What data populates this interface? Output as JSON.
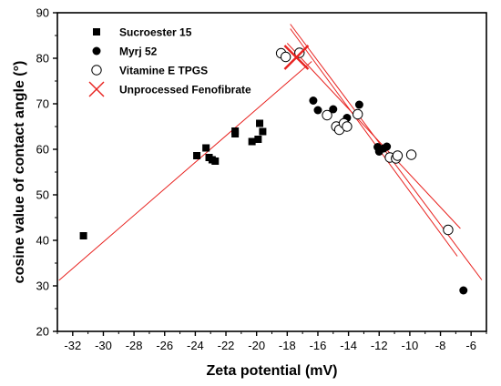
{
  "chart_data": {
    "type": "scatter",
    "xlabel": "Zeta potential (mV)",
    "ylabel": "cosine value of contact angle (°)",
    "xlim": [
      -33,
      -5
    ],
    "ylim": [
      20,
      90
    ],
    "x_ticks": [
      -32,
      -30,
      -28,
      -26,
      -24,
      -22,
      -20,
      -18,
      -16,
      -14,
      -12,
      -10,
      -8,
      -6
    ],
    "y_ticks": [
      20,
      30,
      40,
      50,
      60,
      70,
      80,
      90
    ],
    "x_tick_labels": [
      "-32",
      "-30",
      "-28",
      "-26",
      "-24",
      "-22",
      "-20",
      "-18",
      "-16",
      "-14",
      "-12",
      "-10",
      "-8",
      "-6"
    ],
    "y_tick_labels": [
      "20",
      "30",
      "40",
      "50",
      "60",
      "70",
      "80",
      "90"
    ],
    "legend_position": "top-left",
    "grid": false,
    "series": [
      {
        "name": "Sucroester 15",
        "marker": "square-filled",
        "color": "#000000",
        "points": [
          [
            -31.3,
            41.0
          ],
          [
            -23.9,
            58.6
          ],
          [
            -23.3,
            60.3
          ],
          [
            -23.1,
            58.2
          ],
          [
            -22.9,
            57.7
          ],
          [
            -22.7,
            57.4
          ],
          [
            -21.4,
            63.4
          ],
          [
            -21.4,
            64.0
          ],
          [
            -20.3,
            61.7
          ],
          [
            -19.9,
            62.2
          ],
          [
            -19.8,
            65.7
          ],
          [
            -19.6,
            63.9
          ]
        ]
      },
      {
        "name": "Myrj 52",
        "marker": "circle-filled",
        "color": "#000000",
        "points": [
          [
            -16.3,
            70.7
          ],
          [
            -16.0,
            68.6
          ],
          [
            -15.0,
            68.8
          ],
          [
            -14.1,
            66.9
          ],
          [
            -13.3,
            69.8
          ],
          [
            -12.1,
            60.5
          ],
          [
            -12.0,
            59.5
          ],
          [
            -11.7,
            60.2
          ],
          [
            -11.5,
            60.6
          ],
          [
            -6.5,
            29.0
          ]
        ]
      },
      {
        "name": "Vitamine E TPGS",
        "marker": "circle-open",
        "color": "#000000",
        "points": [
          [
            -18.4,
            81.1
          ],
          [
            -18.1,
            80.3
          ],
          [
            -17.2,
            81.2
          ],
          [
            -15.4,
            67.5
          ],
          [
            -14.8,
            65.0
          ],
          [
            -14.6,
            64.3
          ],
          [
            -14.3,
            65.7
          ],
          [
            -14.1,
            65.0
          ],
          [
            -13.4,
            67.7
          ],
          [
            -11.3,
            58.2
          ],
          [
            -10.9,
            58.0
          ],
          [
            -10.8,
            58.6
          ],
          [
            -9.9,
            58.8
          ],
          [
            -7.5,
            42.3
          ]
        ]
      },
      {
        "name": "Unprocessed Fenofibrate",
        "marker": "x",
        "color": "#e8221f",
        "points": [
          [
            -17.4,
            80.2
          ]
        ]
      }
    ],
    "fit_lines": [
      {
        "color": "#e8221f",
        "from": [
          -32.9,
          31.2
        ],
        "to": [
          -16.4,
          79.3
        ]
      },
      {
        "color": "#e8221f",
        "from": [
          -17.8,
          87.5
        ],
        "to": [
          -5.3,
          31.3
        ]
      },
      {
        "color": "#e8221f",
        "from": [
          -18.0,
          83.3
        ],
        "to": [
          -6.7,
          42.6
        ]
      },
      {
        "color": "#e8221f",
        "from": [
          -17.8,
          86.5
        ],
        "to": [
          -6.9,
          36.5
        ]
      }
    ]
  }
}
